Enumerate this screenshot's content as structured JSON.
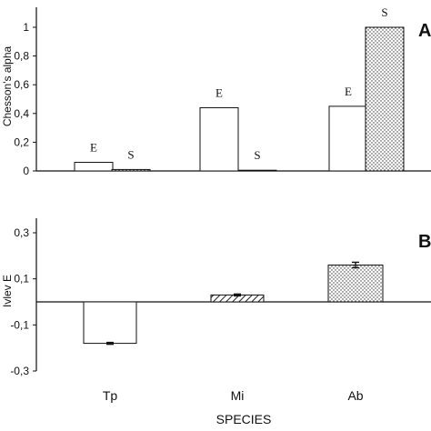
{
  "chart_data": [
    {
      "panel": "A",
      "type": "bar",
      "ylabel": "Chesson's alpha",
      "ylim": [
        0,
        1.1
      ],
      "yticks": [
        "0",
        "0,2",
        "0,4",
        "0,6",
        "0,8",
        "1"
      ],
      "ytick_values": [
        0,
        0.2,
        0.4,
        0.6,
        0.8,
        1.0
      ],
      "categories": [
        "Tp",
        "Mi",
        "Ab"
      ],
      "series": [
        {
          "name": "E",
          "values": [
            0.06,
            0.44,
            0.45
          ],
          "fill": "#ffffff"
        },
        {
          "name": "S",
          "values": [
            0.01,
            0.005,
            1.0
          ],
          "fill": "dotted"
        }
      ]
    },
    {
      "panel": "B",
      "type": "bar",
      "ylabel": "Ivlev E",
      "ylim": [
        -0.3,
        0.3
      ],
      "yticks": [
        "-0,3",
        "-0,1",
        "0,1",
        "0,3"
      ],
      "ytick_values": [
        -0.3,
        -0.1,
        0.1,
        0.3
      ],
      "categories": [
        "Tp",
        "Mi",
        "Ab"
      ],
      "values": [
        -0.18,
        0.03,
        0.16
      ],
      "errors": [
        0.004,
        0.004,
        0.012
      ],
      "fills": [
        "#ffffff",
        "hatched",
        "dotted"
      ]
    }
  ],
  "xlabel": "SPECIES",
  "panel_letters": [
    "A",
    "B"
  ]
}
